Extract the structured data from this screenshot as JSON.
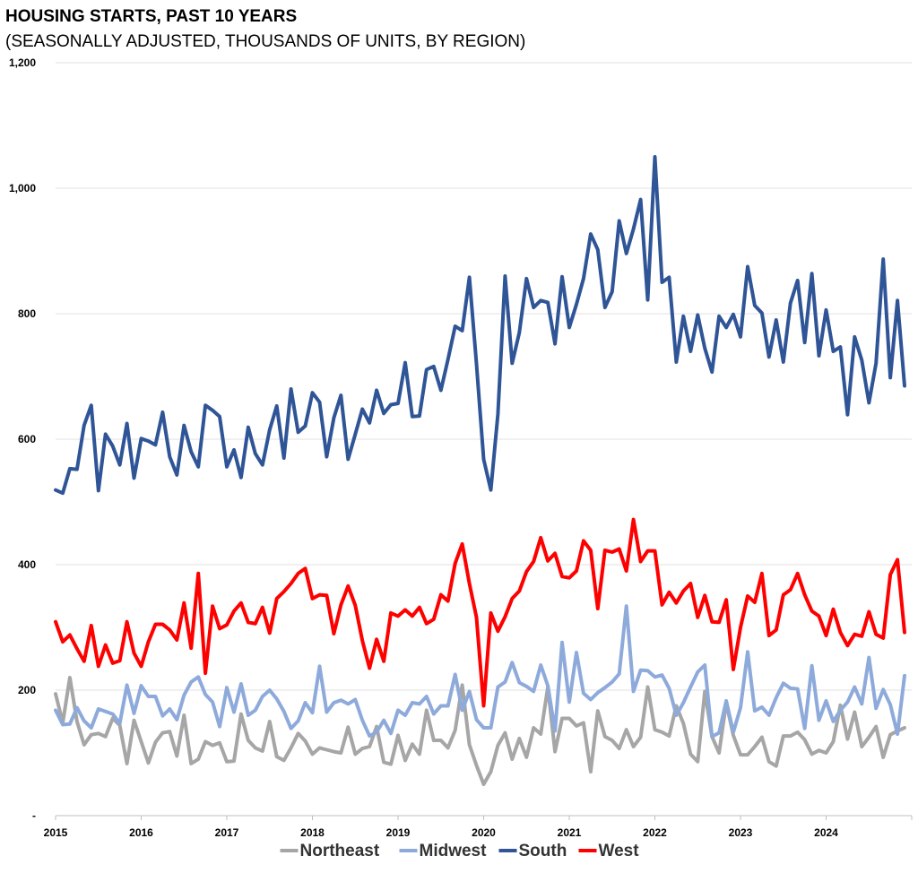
{
  "chart_data": {
    "type": "line",
    "title": "HOUSING STARTS, PAST 10 YEARS",
    "subtitle": "(SEASONALLY ADJUSTED, THOUSANDS OF UNITS, BY REGION)",
    "x_start": 2015,
    "x_ticks": [
      "2015",
      "2016",
      "2017",
      "2018",
      "2019",
      "2020",
      "2021",
      "2022",
      "2023",
      "2024"
    ],
    "ylim": [
      0,
      1200
    ],
    "y_ticks": [
      {
        "value": 0,
        "label": "-"
      },
      {
        "value": 200,
        "label": "200"
      },
      {
        "value": 400,
        "label": "400"
      },
      {
        "value": 600,
        "label": "600"
      },
      {
        "value": 800,
        "label": "800"
      },
      {
        "value": 1000,
        "label": "1,000"
      },
      {
        "value": 1200,
        "label": "1,200"
      }
    ],
    "grid": true,
    "legend_position": "bottom",
    "series": [
      {
        "name": "Northeast",
        "color": "#a6a6a6",
        "values": [
          194,
          148,
          220,
          150,
          113,
          129,
          131,
          126,
          155,
          144,
          83,
          152,
          118,
          84,
          117,
          132,
          134,
          95,
          160,
          83,
          90,
          118,
          112,
          116,
          86,
          87,
          162,
          120,
          108,
          103,
          150,
          94,
          88,
          108,
          131,
          119,
          98,
          108,
          105,
          102,
          100,
          141,
          98,
          107,
          110,
          142,
          85,
          82,
          128,
          88,
          114,
          98,
          168,
          120,
          120,
          108,
          136,
          208,
          113,
          80,
          50,
          70,
          112,
          132,
          90,
          123,
          93,
          140,
          130,
          205,
          102,
          155,
          155,
          143,
          148,
          70,
          167,
          126,
          120,
          107,
          137,
          110,
          125,
          205,
          137,
          133,
          127,
          175,
          147,
          98,
          86,
          198,
          126,
          100,
          180,
          128,
          97,
          97,
          110,
          125,
          86,
          79,
          127,
          127,
          133,
          121,
          98,
          104,
          100,
          118,
          176,
          122,
          165,
          110,
          125,
          142,
          93,
          129,
          135,
          140
        ]
      },
      {
        "name": "Midwest",
        "color": "#8eaadb",
        "values": [
          168,
          145,
          146,
          172,
          151,
          140,
          170,
          166,
          162,
          147,
          208,
          163,
          207,
          190,
          190,
          159,
          170,
          153,
          192,
          213,
          221,
          193,
          181,
          142,
          204,
          165,
          210,
          160,
          168,
          190,
          200,
          186,
          166,
          139,
          151,
          180,
          164,
          238,
          165,
          180,
          184,
          178,
          185,
          152,
          127,
          133,
          152,
          131,
          168,
          160,
          180,
          178,
          190,
          162,
          175,
          175,
          225,
          168,
          198,
          153,
          140,
          140,
          205,
          213,
          244,
          212,
          206,
          198,
          240,
          207,
          135,
          276,
          181,
          260,
          195,
          185,
          196,
          204,
          213,
          226,
          334,
          198,
          232,
          231,
          221,
          224,
          203,
          160,
          180,
          205,
          229,
          240,
          126,
          132,
          183,
          133,
          172,
          261,
          167,
          173,
          160,
          188,
          211,
          203,
          202,
          139,
          239,
          152,
          183,
          150,
          168,
          181,
          205,
          178,
          252,
          171,
          201,
          177,
          130,
          223
        ]
      },
      {
        "name": "South",
        "color": "#2f5597",
        "values": [
          519,
          514,
          553,
          552,
          622,
          654,
          518,
          608,
          589,
          559,
          625,
          538,
          601,
          597,
          591,
          643,
          572,
          543,
          622,
          580,
          556,
          654,
          646,
          636,
          556,
          583,
          539,
          619,
          577,
          559,
          615,
          653,
          570,
          680,
          611,
          621,
          674,
          659,
          572,
          634,
          670,
          568,
          608,
          648,
          626,
          678,
          641,
          655,
          657,
          722,
          636,
          637,
          711,
          716,
          678,
          727,
          780,
          773,
          858,
          720,
          568,
          519,
          640,
          860,
          721,
          770,
          856,
          810,
          821,
          818,
          752,
          859,
          778,
          815,
          856,
          927,
          902,
          810,
          835,
          948,
          896,
          935,
          982,
          822,
          1050,
          850,
          858,
          723,
          796,
          740,
          798,
          745,
          707,
          796,
          778,
          799,
          763,
          875,
          813,
          801,
          731,
          790,
          723,
          817,
          853,
          754,
          864,
          733,
          806,
          740,
          747,
          639,
          763,
          726,
          658,
          721,
          887,
          698,
          821,
          685
        ]
      },
      {
        "name": "West",
        "color": "#ff0000",
        "values": [
          309,
          277,
          288,
          266,
          246,
          303,
          238,
          272,
          243,
          247,
          309,
          259,
          238,
          277,
          305,
          305,
          296,
          280,
          339,
          267,
          386,
          227,
          334,
          298,
          304,
          326,
          339,
          308,
          306,
          332,
          291,
          346,
          357,
          370,
          386,
          394,
          346,
          352,
          351,
          290,
          336,
          366,
          335,
          279,
          235,
          281,
          246,
          323,
          318,
          328,
          318,
          332,
          306,
          313,
          352,
          342,
          402,
          433,
          370,
          316,
          175,
          323,
          294,
          317,
          346,
          358,
          389,
          405,
          443,
          406,
          418,
          381,
          379,
          390,
          438,
          423,
          330,
          423,
          420,
          425,
          390,
          472,
          405,
          422,
          422,
          336,
          356,
          339,
          358,
          370,
          316,
          351,
          309,
          308,
          344,
          233,
          300,
          350,
          340,
          386,
          287,
          296,
          352,
          360,
          386,
          352,
          326,
          318,
          287,
          329,
          292,
          271,
          289,
          286,
          325,
          289,
          283,
          384,
          408,
          292
        ]
      }
    ]
  }
}
